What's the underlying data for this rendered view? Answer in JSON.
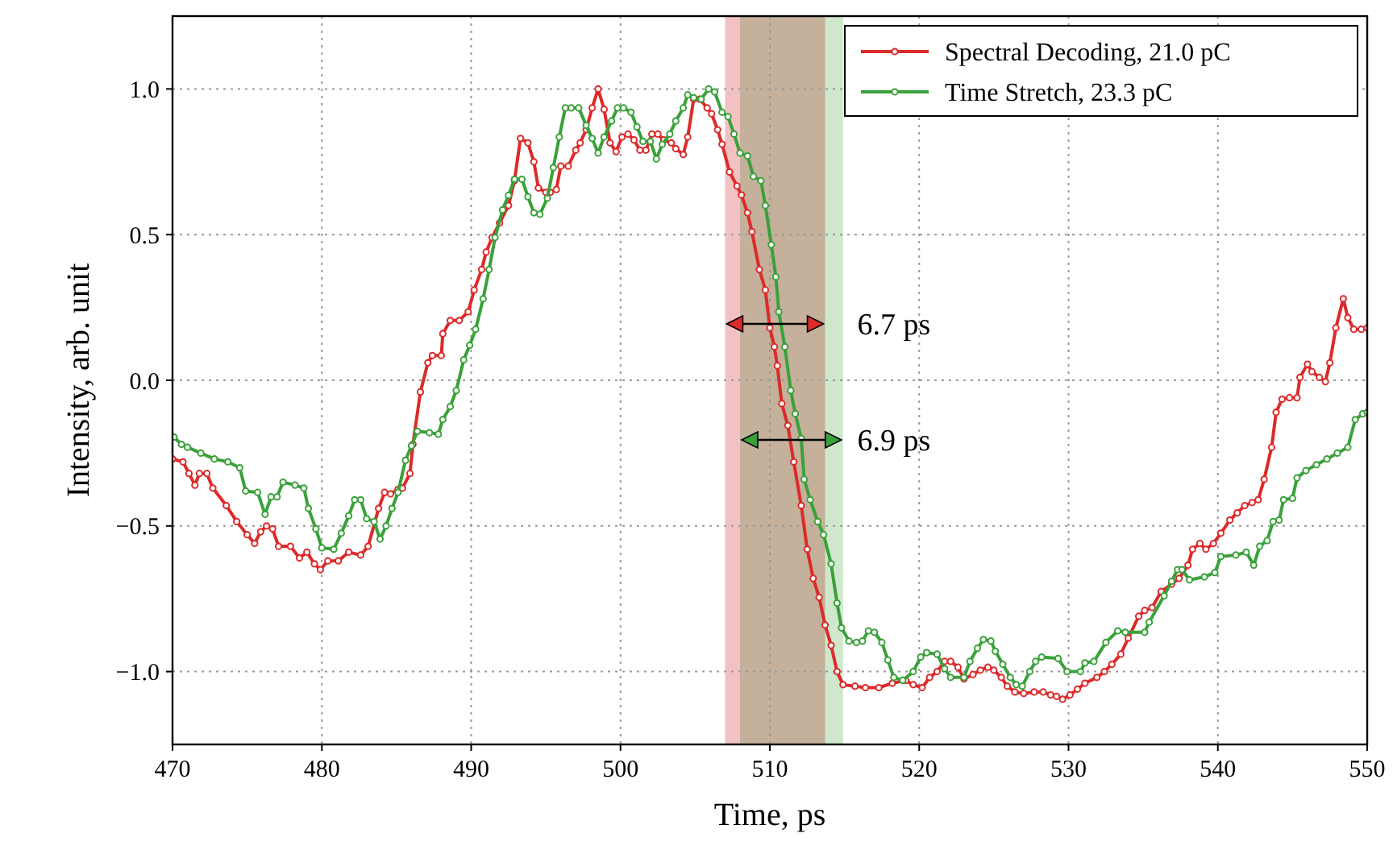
{
  "chart_data": {
    "type": "line",
    "xlabel": "Time, ps",
    "ylabel": "Intensity, arb. unit",
    "xlim": [
      470,
      550
    ],
    "ylim": [
      -1.25,
      1.25
    ],
    "xticks": [
      470,
      480,
      490,
      500,
      510,
      520,
      530,
      540,
      550
    ],
    "yticks": [
      {
        "value": -1,
        "label": "−1.0"
      },
      {
        "value": -0.5,
        "label": "−0.5"
      },
      {
        "value": 0,
        "label": "0.0"
      },
      {
        "value": 0.5,
        "label": "0.5"
      },
      {
        "value": 1,
        "label": "1.0"
      }
    ],
    "grid": true,
    "legend": "top right",
    "marker": "circle",
    "line_style": "solid",
    "series": [
      {
        "name": "Spectral Decoding, 21.0 pC",
        "color": "#dd2a2a",
        "x": [
          470,
          470.7,
          471.1,
          471.5,
          471.8,
          472.3,
          472.7,
          473.6,
          474.3,
          475,
          475.5,
          475.9,
          476.3,
          476.7,
          477.1,
          477.9,
          478.5,
          479,
          479.5,
          479.9,
          480.4,
          481.1,
          481.8,
          482.6,
          483.1,
          483.8,
          484.2,
          484.6,
          485.1,
          485.4,
          485.9,
          486.1,
          486.6,
          487.1,
          487.4,
          488,
          488.1,
          488.6,
          489.2,
          489.8,
          490.2,
          490.7,
          491,
          491.4,
          491.9,
          492.5,
          492.9,
          493.3,
          493.8,
          494.2,
          494.5,
          495,
          495.3,
          495.7,
          496,
          496.5,
          497,
          497.3,
          497.7,
          498.1,
          498.5,
          498.9,
          499.3,
          499.7,
          500.1,
          500.5,
          500.9,
          501.3,
          501.7,
          502.1,
          502.5,
          502.9,
          503.4,
          503.7,
          504.2,
          504.5,
          504.9,
          505.3,
          505.8,
          506.1,
          506.5,
          506.8,
          507.3,
          507.8,
          508.1,
          508.5,
          508.8,
          509.3,
          509.7,
          510,
          510.3,
          510.5,
          510.8,
          511.2,
          511.6,
          512.1,
          512.5,
          512.9,
          513.3,
          513.7,
          514.1,
          514.5,
          514.9,
          515.7,
          516.4,
          517.3,
          518.2,
          519.1,
          519.6,
          520.2,
          520.7,
          521.2,
          521.7,
          522.1,
          522.6,
          523,
          523.6,
          524.1,
          524.6,
          525,
          525.5,
          525.9,
          526.4,
          527,
          527.7,
          528.3,
          528.8,
          529.2,
          529.6,
          530.1,
          530.6,
          531.1,
          531.9,
          532.4,
          532.9,
          533.5,
          534,
          534.7,
          535.1,
          535.6,
          536.2,
          536.9,
          537.4,
          538,
          538.3,
          538.8,
          539.2,
          539.7,
          540.2,
          540.8,
          541.3,
          541.8,
          542.3,
          542.7,
          543.1,
          543.6,
          543.9,
          544.3,
          544.8,
          545.3,
          545.5,
          546,
          546.3,
          546.8,
          547.2,
          547.5,
          547.9,
          548.4,
          548.7,
          549.1,
          549.6,
          550
        ],
        "values": [
          -0.27,
          -0.28,
          -0.32,
          -0.36,
          -0.32,
          -0.32,
          -0.37,
          -0.43,
          -0.485,
          -0.53,
          -0.56,
          -0.52,
          -0.5,
          -0.51,
          -0.57,
          -0.57,
          -0.61,
          -0.59,
          -0.63,
          -0.65,
          -0.62,
          -0.62,
          -0.59,
          -0.6,
          -0.57,
          -0.44,
          -0.385,
          -0.39,
          -0.375,
          -0.37,
          -0.32,
          -0.22,
          -0.04,
          0.06,
          0.085,
          0.085,
          0.16,
          0.205,
          0.205,
          0.235,
          0.31,
          0.38,
          0.44,
          0.49,
          0.54,
          0.6,
          0.685,
          0.83,
          0.815,
          0.75,
          0.66,
          0.645,
          0.645,
          0.655,
          0.735,
          0.735,
          0.79,
          0.815,
          0.86,
          0.935,
          1.0,
          0.93,
          0.815,
          0.785,
          0.835,
          0.845,
          0.825,
          0.79,
          0.79,
          0.845,
          0.845,
          0.825,
          0.815,
          0.795,
          0.775,
          0.835,
          0.965,
          0.965,
          0.935,
          0.915,
          0.86,
          0.81,
          0.715,
          0.667,
          0.636,
          0.575,
          0.51,
          0.38,
          0.31,
          0.18,
          0.115,
          0.05,
          -0.08,
          -0.155,
          -0.28,
          -0.43,
          -0.58,
          -0.68,
          -0.745,
          -0.84,
          -0.91,
          -1.0,
          -1.045,
          -1.05,
          -1.055,
          -1.055,
          -1.04,
          -1.03,
          -1.045,
          -1.055,
          -1.02,
          -1.0,
          -0.965,
          -0.965,
          -0.985,
          -1.025,
          -1.01,
          -0.995,
          -0.985,
          -0.995,
          -1.02,
          -1.05,
          -1.07,
          -1.075,
          -1.07,
          -1.07,
          -1.08,
          -1.085,
          -1.095,
          -1.08,
          -1.06,
          -1.04,
          -1.02,
          -1.0,
          -0.975,
          -0.94,
          -0.885,
          -0.81,
          -0.79,
          -0.78,
          -0.725,
          -0.7,
          -0.68,
          -0.635,
          -0.58,
          -0.56,
          -0.58,
          -0.56,
          -0.525,
          -0.48,
          -0.455,
          -0.43,
          -0.42,
          -0.41,
          -0.34,
          -0.23,
          -0.11,
          -0.065,
          -0.06,
          -0.06,
          0.01,
          0.055,
          0.03,
          0.01,
          -0.005,
          0.06,
          0.18,
          0.28,
          0.215,
          0.175,
          0.175,
          0.18
        ]
      },
      {
        "name": "Time Stretch, 23.3 pC",
        "color": "#3aa13a",
        "x": [
          470.1,
          470.6,
          471,
          471.9,
          472.8,
          473.7,
          474.5,
          474.9,
          475.7,
          476.2,
          476.6,
          477,
          477.4,
          478.2,
          478.8,
          479.1,
          479.6,
          480,
          480.8,
          481.3,
          481.8,
          482.2,
          482.6,
          483,
          483.5,
          483.9,
          484.3,
          484.7,
          485.1,
          485.6,
          486,
          486.4,
          487.2,
          487.8,
          488.1,
          488.6,
          489,
          489.5,
          489.9,
          490.3,
          490.8,
          491.2,
          491.6,
          492.1,
          492.5,
          492.9,
          493.4,
          493.8,
          494.2,
          494.6,
          495.1,
          495.5,
          495.9,
          496.3,
          496.7,
          497.2,
          497.7,
          498.1,
          498.5,
          498.9,
          499.4,
          499.8,
          500.2,
          500.7,
          501.1,
          501.5,
          502,
          502.4,
          502.8,
          503.3,
          503.7,
          504.2,
          504.5,
          504.9,
          505.4,
          505.9,
          506.3,
          506.8,
          507.2,
          507.6,
          508,
          508.5,
          508.9,
          509.4,
          509.7,
          510.1,
          510.4,
          510.6,
          511,
          511.4,
          511.7,
          512.1,
          512.3,
          512.7,
          513.2,
          513.6,
          514.1,
          514.5,
          514.8,
          515.3,
          515.8,
          516.2,
          516.6,
          517,
          517.5,
          517.9,
          518.3,
          518.9,
          519.6,
          520.1,
          520.5,
          521.2,
          521.7,
          522.1,
          523,
          523.4,
          523.9,
          524.3,
          524.8,
          525.1,
          525.6,
          526.1,
          526.5,
          526.9,
          527.4,
          527.8,
          528.2,
          529.3,
          529.9,
          530.8,
          531.1,
          531.7,
          532.5,
          533.3,
          533.8,
          535.1,
          535.4,
          536.4,
          536.9,
          537.3,
          537.6,
          538.1,
          539.1,
          539.8,
          540.2,
          541.2,
          541.9,
          542.4,
          542.8,
          543.3,
          543.7,
          544.1,
          544.4,
          545,
          545.3,
          545.9,
          546.6,
          547.3,
          548,
          548.7,
          549.2,
          549.7,
          550
        ],
        "values": [
          -0.195,
          -0.22,
          -0.23,
          -0.25,
          -0.27,
          -0.28,
          -0.3,
          -0.38,
          -0.385,
          -0.46,
          -0.4,
          -0.4,
          -0.35,
          -0.36,
          -0.37,
          -0.44,
          -0.51,
          -0.575,
          -0.58,
          -0.525,
          -0.465,
          -0.41,
          -0.41,
          -0.475,
          -0.485,
          -0.545,
          -0.5,
          -0.44,
          -0.385,
          -0.275,
          -0.225,
          -0.175,
          -0.18,
          -0.185,
          -0.135,
          -0.09,
          -0.035,
          0.07,
          0.12,
          0.175,
          0.28,
          0.38,
          0.49,
          0.585,
          0.635,
          0.69,
          0.69,
          0.63,
          0.575,
          0.57,
          0.625,
          0.73,
          0.835,
          0.935,
          0.935,
          0.935,
          0.875,
          0.83,
          0.78,
          0.835,
          0.89,
          0.935,
          0.935,
          0.92,
          0.87,
          0.82,
          0.82,
          0.76,
          0.81,
          0.845,
          0.89,
          0.935,
          0.98,
          0.97,
          0.965,
          1.0,
          0.99,
          0.92,
          0.905,
          0.845,
          0.78,
          0.77,
          0.7,
          0.685,
          0.6,
          0.465,
          0.355,
          0.235,
          0.115,
          -0.035,
          -0.115,
          -0.2,
          -0.34,
          -0.41,
          -0.485,
          -0.53,
          -0.63,
          -0.765,
          -0.85,
          -0.895,
          -0.9,
          -0.895,
          -0.86,
          -0.865,
          -0.9,
          -0.96,
          -1.02,
          -1.03,
          -1.0,
          -0.95,
          -0.935,
          -0.94,
          -0.99,
          -1.02,
          -1.02,
          -0.965,
          -0.92,
          -0.89,
          -0.895,
          -0.93,
          -0.975,
          -1.02,
          -1.045,
          -1.05,
          -1.0,
          -0.965,
          -0.95,
          -0.955,
          -1.0,
          -1.0,
          -0.97,
          -0.965,
          -0.9,
          -0.86,
          -0.865,
          -0.865,
          -0.83,
          -0.74,
          -0.69,
          -0.65,
          -0.65,
          -0.685,
          -0.675,
          -0.66,
          -0.605,
          -0.6,
          -0.59,
          -0.635,
          -0.57,
          -0.55,
          -0.485,
          -0.48,
          -0.41,
          -0.405,
          -0.335,
          -0.31,
          -0.29,
          -0.27,
          -0.25,
          -0.23,
          -0.135,
          -0.115,
          -0.11
        ]
      }
    ],
    "bands": [
      {
        "axis": "x",
        "from": 507.0,
        "to": 513.7,
        "color": "#f2c2c2"
      },
      {
        "axis": "x",
        "from": 508.0,
        "to": 514.9,
        "color": "#cfe8cc"
      }
    ],
    "annotations": [
      "6.7 ps",
      "6.9 ps"
    ]
  }
}
